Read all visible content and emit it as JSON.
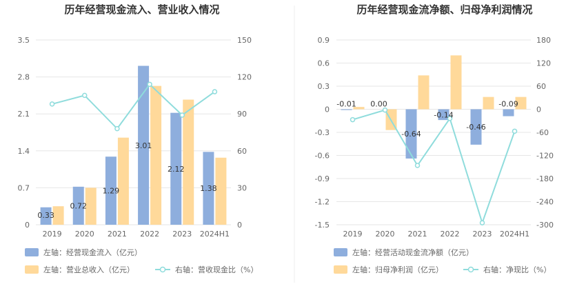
{
  "colors": {
    "bar_primary": "#8eaedd",
    "bar_secondary": "#ffd99a",
    "line": "#8fdcdc",
    "grid": "#e6e6e6",
    "divider": "#eeeeee",
    "text": "#666666",
    "title": "#333333"
  },
  "chart_data": [
    {
      "type": "bar",
      "title": "历年经营现金流入、营业收入情况",
      "categories": [
        "2019",
        "2020",
        "2021",
        "2022",
        "2023",
        "2024H1"
      ],
      "left_axis": {
        "ticks": [
          "0",
          "0.7",
          "1.4",
          "2.1",
          "2.8",
          "3.5"
        ],
        "min": 0,
        "max": 3.5
      },
      "right_axis": {
        "ticks": [
          "0",
          "30",
          "60",
          "90",
          "120",
          "150"
        ],
        "min": 0,
        "max": 150
      },
      "grid": true,
      "legend_position": "bottom-left",
      "series": [
        {
          "name": "左轴：经营现金流入（亿元）",
          "kind": "bar",
          "axis": "left",
          "values": [
            0.33,
            0.72,
            1.29,
            3.01,
            2.12,
            1.38
          ],
          "labels": [
            "0.33",
            "0.72",
            "1.29",
            "3.01",
            "2.12",
            "1.38"
          ],
          "color": "#8eaedd"
        },
        {
          "name": "左轴：营业总收入（亿元）",
          "kind": "bar",
          "axis": "left",
          "values": [
            0.35,
            0.7,
            1.65,
            2.63,
            2.37,
            1.27
          ],
          "color": "#ffd99a"
        },
        {
          "name": "右轴：营收现金比（%）",
          "kind": "line",
          "axis": "right",
          "values": [
            98,
            105,
            78,
            114,
            89,
            108
          ],
          "color": "#8fdcdc"
        }
      ]
    },
    {
      "type": "bar",
      "title": "历年经营现金流净额、归母净利润情况",
      "categories": [
        "2019",
        "2020",
        "2021",
        "2022",
        "2023",
        "2024H1"
      ],
      "left_axis": {
        "ticks": [
          "-1.5",
          "-1.2",
          "-0.9",
          "-0.6",
          "-0.3",
          "0",
          "0.3",
          "0.6",
          "0.9"
        ],
        "min": -1.5,
        "max": 0.9
      },
      "right_axis": {
        "ticks": [
          "-300",
          "-240",
          "-180",
          "-120",
          "-60",
          "0",
          "60",
          "120",
          "180"
        ],
        "min": -300,
        "max": 180
      },
      "grid": true,
      "legend_position": "bottom-left",
      "series": [
        {
          "name": "左轴：经营活动现金流净额（亿元）",
          "kind": "bar",
          "axis": "left",
          "values": [
            -0.01,
            0.0,
            -0.64,
            -0.14,
            -0.46,
            -0.09
          ],
          "labels": [
            "-0.01",
            "0.00",
            "-0.64",
            "-0.14",
            "-0.46",
            "-0.09"
          ],
          "color": "#8eaedd"
        },
        {
          "name": "左轴：归母净利润（亿元）",
          "kind": "bar",
          "axis": "left",
          "values": [
            0.03,
            -0.27,
            0.44,
            0.7,
            0.16,
            0.16
          ],
          "color": "#ffd99a"
        },
        {
          "name": "右轴：净现比（%）",
          "kind": "line",
          "axis": "right",
          "values": [
            -27,
            -2,
            -146,
            -24,
            -295,
            -57
          ],
          "color": "#8fdcdc"
        }
      ]
    }
  ]
}
